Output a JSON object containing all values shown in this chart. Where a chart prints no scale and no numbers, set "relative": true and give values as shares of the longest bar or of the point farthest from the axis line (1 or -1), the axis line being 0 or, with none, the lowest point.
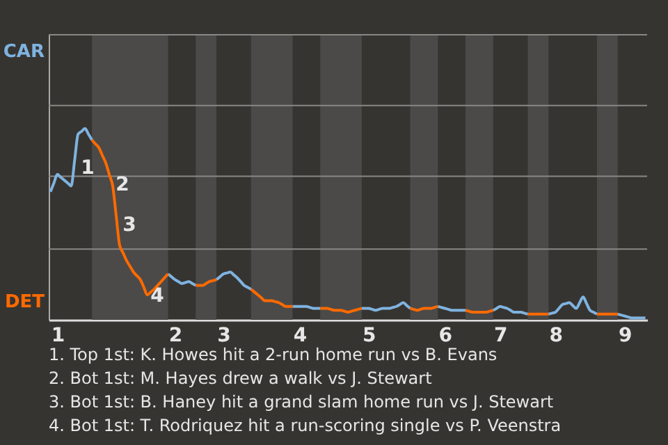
{
  "chart_data": {
    "type": "line",
    "relative": true,
    "categories": [
      null,
      null,
      "1",
      null,
      null,
      null,
      null,
      null,
      null,
      null,
      null,
      null,
      null,
      null,
      null,
      null,
      null,
      null,
      null,
      null,
      null,
      null,
      null,
      null,
      null,
      null,
      null,
      null,
      null,
      null,
      null,
      null,
      null,
      null,
      null,
      null,
      "2",
      null,
      null,
      null,
      null,
      null,
      null,
      null,
      null,
      null,
      null,
      null,
      null,
      null,
      "3",
      null,
      null,
      null,
      null,
      null,
      null,
      null,
      null,
      null,
      null,
      null,
      null,
      null,
      null,
      null,
      null,
      null,
      null,
      null,
      null,
      null,
      "4",
      null,
      null,
      null,
      null,
      null,
      null,
      null,
      null,
      null,
      null,
      null,
      null,
      null,
      null,
      null,
      null,
      null,
      null,
      null,
      "5",
      null,
      null,
      null,
      null,
      null,
      null,
      null,
      null,
      null,
      null,
      null,
      null,
      null,
      null,
      null,
      null,
      null,
      null,
      null,
      null,
      null,
      "6",
      null,
      null,
      null,
      null,
      null,
      null,
      null,
      null,
      null,
      null,
      null,
      null,
      null,
      null,
      null,
      "7",
      null,
      null,
      null,
      null,
      null,
      null,
      null,
      null,
      null,
      null,
      null,
      null,
      null,
      null,
      null,
      "8",
      null,
      null,
      null,
      null,
      null,
      null,
      null,
      null,
      null,
      null,
      null,
      null,
      null,
      null,
      null,
      null,
      null,
      null,
      null,
      "9",
      null,
      null,
      null,
      null,
      null,
      null
    ],
    "marker": "none",
    "line_style": "solid",
    "ref_lines": [
      {
        "axis": "y",
        "value": 0.37,
        "color": "#8a8885"
      },
      {
        "axis": "y",
        "value": 0.75,
        "color": "#8a8885"
      },
      {
        "axis": "y",
        "value": 1.12,
        "color": "#8a8885"
      },
      {
        "axis": "y",
        "value": 1.49,
        "color": "#8a8885"
      }
    ],
    "series": [
      {
        "color": "#7fb3e0",
        "values": [
          0.67,
          0.715,
          0.76,
          0.745,
          0.73,
          0.715,
          0.7,
          0.835,
          0.97,
          0.985,
          1,
          0.97,
          0.94,
          null,
          null,
          null,
          null,
          null,
          null,
          null,
          null,
          null,
          null,
          null,
          null,
          null,
          null,
          null,
          null,
          null,
          null,
          null,
          null,
          null,
          0.24,
          0.225,
          0.21,
          0.2,
          0.19,
          0.195,
          0.2,
          0.19,
          0.18,
          null,
          null,
          null,
          null,
          null,
          0.21,
          0.225,
          0.24,
          0.245,
          0.25,
          0.235,
          0.22,
          0.2,
          0.18,
          0.17,
          0.16,
          null,
          null,
          null,
          null,
          null,
          null,
          null,
          null,
          null,
          null,
          null,
          0.07,
          0.07,
          0.07,
          0.07,
          0.07,
          0.065,
          0.06,
          0.06,
          0.06,
          null,
          null,
          null,
          null,
          null,
          null,
          null,
          null,
          null,
          null,
          null,
          0.06,
          0.06,
          0.06,
          0.055,
          0.05,
          0.055,
          0.06,
          0.06,
          0.06,
          0.065,
          0.07,
          0.08,
          0.09,
          0.075,
          0.06,
          null,
          null,
          null,
          null,
          null,
          null,
          null,
          0.07,
          0.065,
          0.06,
          0.055,
          0.05,
          0.05,
          0.05,
          0.05,
          0.05,
          null,
          null,
          null,
          null,
          null,
          null,
          null,
          0.05,
          0.06,
          0.07,
          0.065,
          0.06,
          0.05,
          0.04,
          0.04,
          0.04,
          0.035,
          0.03,
          null,
          null,
          null,
          null,
          null,
          0.03,
          0.035,
          0.04,
          0.06,
          0.08,
          0.085,
          0.09,
          0.075,
          0.06,
          0.09,
          0.12,
          0.085,
          0.05,
          0.04,
          0.03,
          null,
          null,
          null,
          null,
          null,
          0.03,
          0.025,
          0.02,
          0.015,
          0.01,
          0.01,
          0.01,
          0.01,
          0.01
        ]
      },
      {
        "color": "#ff6a00",
        "values": [
          null,
          null,
          null,
          null,
          null,
          null,
          null,
          null,
          null,
          null,
          null,
          null,
          0.94,
          0.92,
          0.9,
          0.86,
          0.82,
          0.76,
          0.7,
          0.545,
          0.39,
          0.35,
          0.31,
          0.28,
          0.25,
          0.23,
          0.21,
          0.17,
          0.13,
          0.145,
          0.16,
          0.18,
          0.2,
          0.22,
          0.24,
          null,
          null,
          null,
          null,
          null,
          null,
          null,
          0.18,
          0.18,
          0.18,
          0.19,
          0.2,
          0.205,
          0.21,
          null,
          null,
          null,
          null,
          null,
          null,
          null,
          null,
          null,
          0.16,
          0.145,
          0.13,
          0.115,
          0.1,
          0.1,
          0.1,
          0.095,
          0.09,
          0.08,
          0.07,
          0.07,
          0.07,
          null,
          null,
          null,
          null,
          null,
          null,
          null,
          0.06,
          0.06,
          0.06,
          0.055,
          0.05,
          0.05,
          0.05,
          0.045,
          0.04,
          0.045,
          0.05,
          0.055,
          0.06,
          null,
          null,
          null,
          null,
          null,
          null,
          null,
          null,
          null,
          null,
          null,
          null,
          null,
          0.06,
          0.055,
          0.05,
          0.055,
          0.06,
          0.06,
          0.06,
          0.065,
          0.07,
          null,
          null,
          null,
          null,
          null,
          null,
          null,
          0.05,
          0.045,
          0.04,
          0.04,
          0.04,
          0.04,
          0.04,
          0.045,
          0.05,
          null,
          null,
          null,
          null,
          null,
          null,
          null,
          null,
          null,
          0.03,
          0.03,
          0.03,
          0.03,
          0.03,
          0.03,
          0.03,
          null,
          null,
          null,
          null,
          null,
          null,
          null,
          null,
          null,
          null,
          null,
          null,
          null,
          0.03,
          0.03,
          0.03,
          0.03,
          0.03,
          0.03,
          0.03,
          null,
          null,
          null,
          null,
          null,
          null,
          null,
          null
        ]
      }
    ],
    "annotations": [
      "CAR",
      "DET",
      "1",
      "2",
      "3",
      "4",
      "1. Top 1st: K. Howes hit a 2-run home run vs B. Evans",
      "2. Bot 1st: M. Hayes drew a walk vs J. Stewart",
      "3. Bot 1st: B. Haney hit a grand slam home run vs J. Stewart",
      "4. Bot 1st: T. Rodriquez hit a run-scoring single vs P. Veenstra"
    ]
  }
}
